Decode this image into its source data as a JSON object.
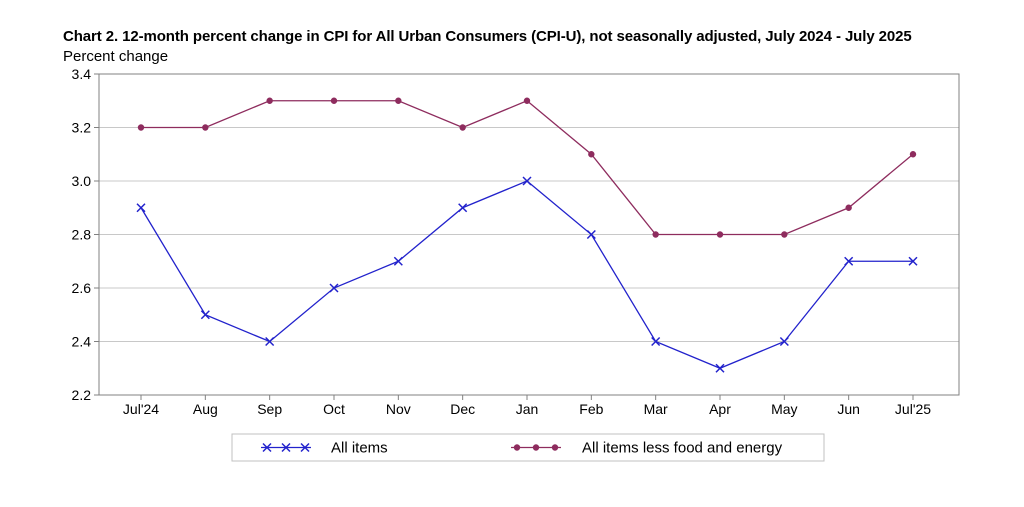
{
  "title": "Chart 2. 12-month percent change in CPI for All Urban Consumers (CPI-U), not seasonally adjusted, July 2024 - July 2025",
  "y_unit_label": "Percent change",
  "chart_data": {
    "type": "line",
    "title": "Chart 2. 12-month percent change in CPI for All Urban Consumers (CPI-U), not seasonally adjusted, July 2024 - July 2025",
    "ylabel": "Percent change",
    "xlabel": "",
    "categories": [
      "Jul'24",
      "Aug",
      "Sep",
      "Oct",
      "Nov",
      "Dec",
      "Jan",
      "Feb",
      "Mar",
      "Apr",
      "May",
      "Jun",
      "Jul'25"
    ],
    "ylim": [
      2.2,
      3.4
    ],
    "yticks": [
      "2.2",
      "2.4",
      "2.6",
      "2.8",
      "3.0",
      "3.2",
      "3.4"
    ],
    "grid": "horizontal",
    "legend_position": "bottom",
    "series": [
      {
        "name": "All items",
        "color": "#2222cc",
        "marker": "x",
        "values": [
          2.9,
          2.5,
          2.4,
          2.6,
          2.7,
          2.9,
          3.0,
          2.8,
          2.4,
          2.3,
          2.4,
          2.7,
          2.7
        ]
      },
      {
        "name": "All items less food and energy",
        "color": "#8e2c5e",
        "marker": "circle",
        "values": [
          3.2,
          3.2,
          3.3,
          3.3,
          3.3,
          3.2,
          3.3,
          3.1,
          2.8,
          2.8,
          2.8,
          2.9,
          3.1
        ]
      }
    ]
  }
}
